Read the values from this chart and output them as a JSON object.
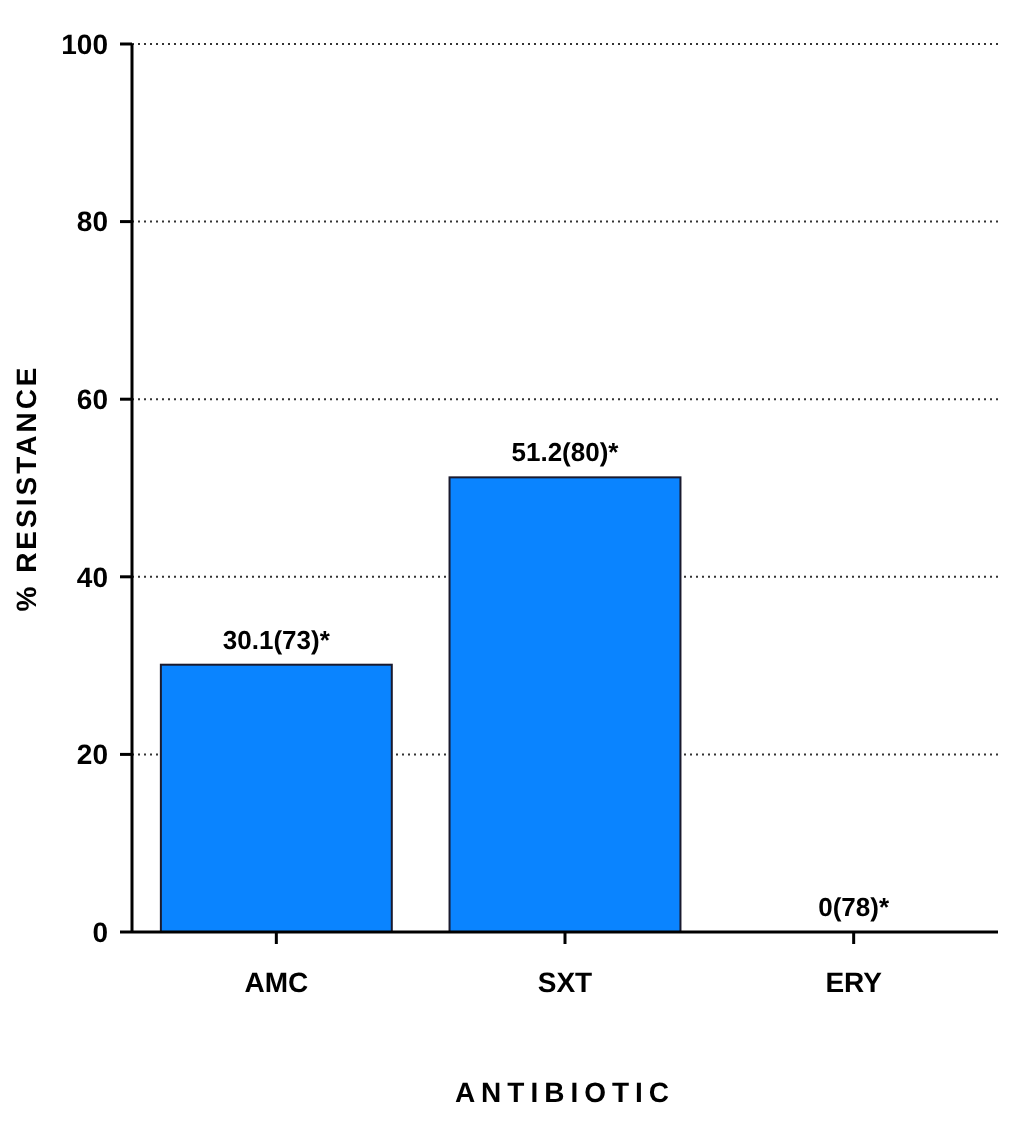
{
  "chart_data": {
    "type": "bar",
    "xlabel": "ANTIBIOTIC",
    "ylabel": "% RESISTANCE",
    "categories": [
      "AMC",
      "SXT",
      "ERY"
    ],
    "values": [
      30.1,
      51.2,
      0
    ],
    "color": "#0a84ff",
    "value_labels": [
      "30.1(73)*",
      "51.2(80)*",
      "0(78)*"
    ],
    "ylim": [
      0,
      100
    ],
    "yticks": [
      0,
      20,
      40,
      60,
      80,
      100
    ],
    "grid": "y"
  }
}
